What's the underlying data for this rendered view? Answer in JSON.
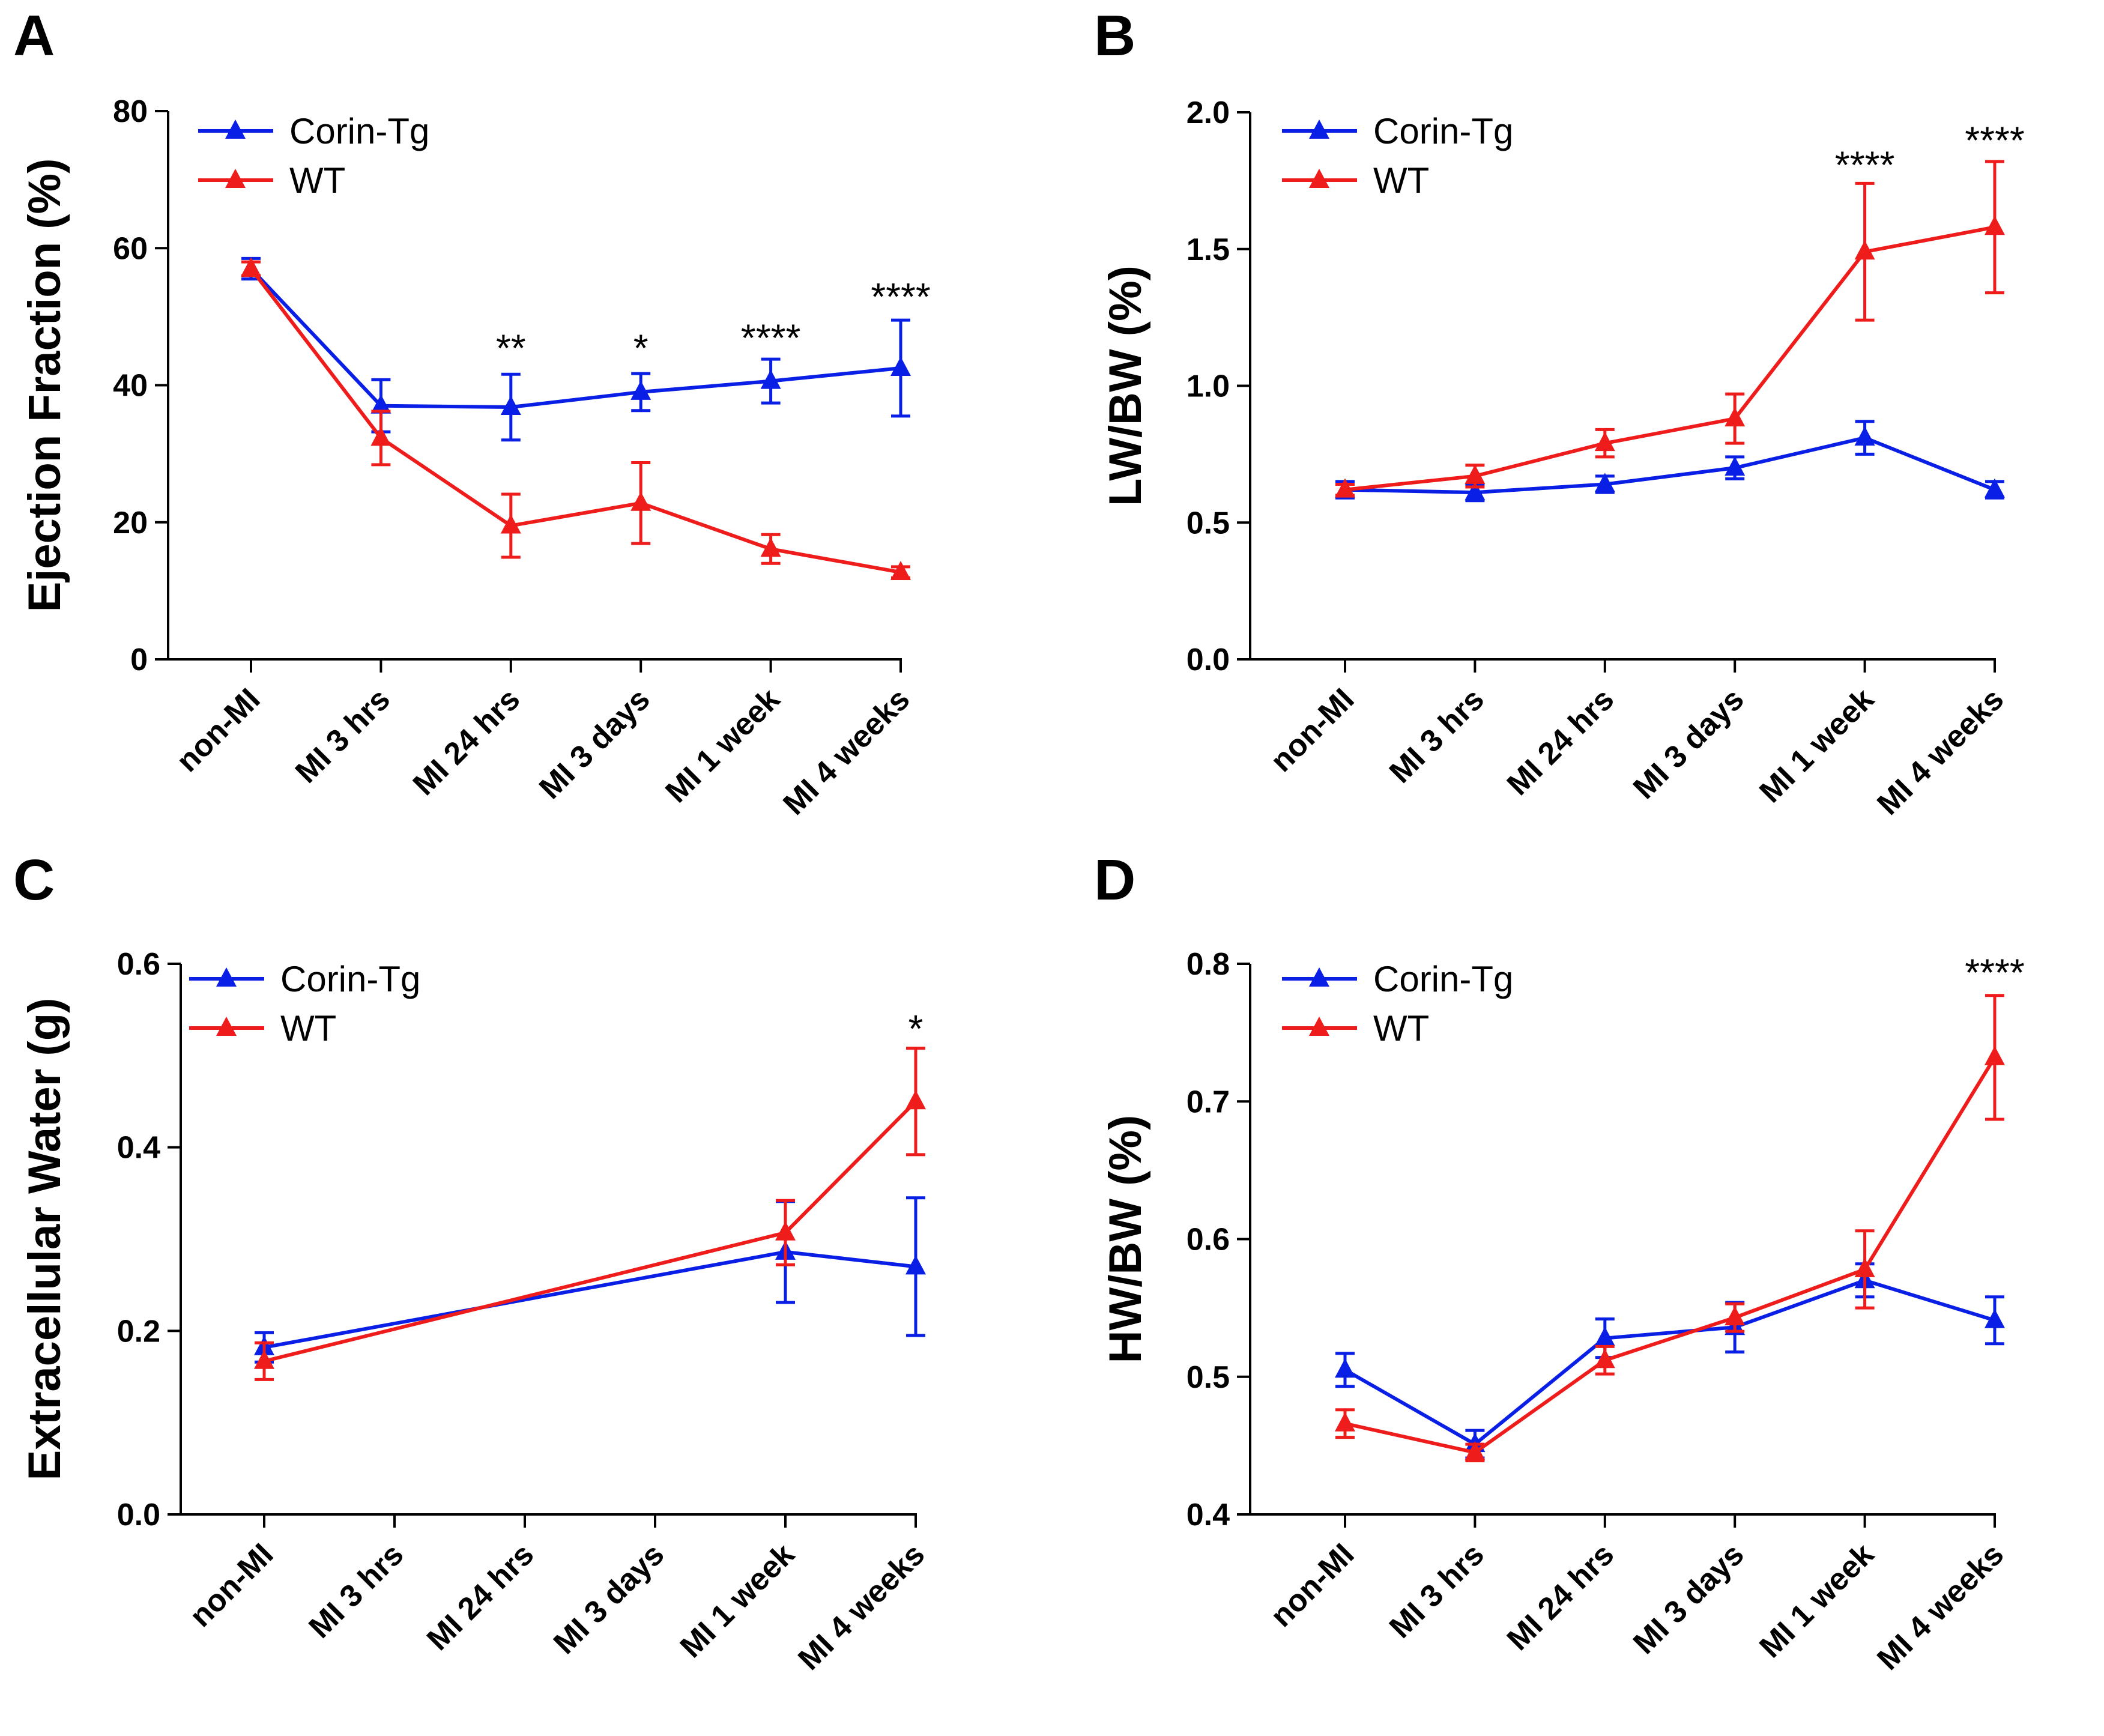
{
  "colors": {
    "corin_tg": "#0a1fe6",
    "wt": "#ef1c1c",
    "axis": "#000000"
  },
  "chart_data": [
    {
      "panel": "A",
      "type": "line",
      "ylabel": "Ejection Fraction (%)",
      "xlabel": "",
      "ylim": [
        0,
        80
      ],
      "yticks": [
        0,
        20,
        40,
        60,
        80
      ],
      "ytick_labels": [
        "0",
        "20",
        "40",
        "60",
        "80"
      ],
      "categories": [
        "non-MI",
        "MI 3 hrs",
        "MI 24 hrs",
        "MI 3 days",
        "MI 1 week",
        "MI 4 weeks"
      ],
      "legend": {
        "position": "top-left",
        "entries": [
          "Corin-Tg",
          "WT"
        ]
      },
      "series": [
        {
          "name": "Corin-Tg",
          "color": "#0a1fe6",
          "x": [
            0,
            1,
            2,
            3,
            4,
            5
          ],
          "values": [
            57,
            37,
            36.8,
            39,
            40.6,
            42.5
          ],
          "errors": [
            1.5,
            3.8,
            4.8,
            2.7,
            3.2,
            7
          ]
        },
        {
          "name": "WT",
          "color": "#ef1c1c",
          "x": [
            0,
            1,
            2,
            3,
            4,
            5
          ],
          "values": [
            57,
            32.3,
            19.5,
            22.8,
            16.1,
            12.7
          ],
          "errors": [
            1,
            3.9,
            4.6,
            5.9,
            2.1,
            0.8
          ]
        }
      ],
      "significance": [
        {
          "x": 2,
          "label": "**",
          "y": 43.5
        },
        {
          "x": 3,
          "label": "*",
          "y": 43.5
        },
        {
          "x": 4,
          "label": "****",
          "y": 45
        },
        {
          "x": 5,
          "label": "****",
          "y": 51
        }
      ]
    },
    {
      "panel": "B",
      "type": "line",
      "ylabel": "LW/BW (%)",
      "xlabel": "",
      "ylim": [
        0,
        2.0
      ],
      "yticks": [
        0,
        0.5,
        1.0,
        1.5,
        2.0
      ],
      "ytick_labels": [
        "0.0",
        "0.5",
        "1.0",
        "1.5",
        "2.0"
      ],
      "categories": [
        "non-MI",
        "MI 3 hrs",
        "MI 24 hrs",
        "MI 3 days",
        "MI 1 week",
        "MI 4 weeks"
      ],
      "legend": {
        "position": "top-left",
        "entries": [
          "Corin-Tg",
          "WT"
        ]
      },
      "series": [
        {
          "name": "Corin-Tg",
          "color": "#0a1fe6",
          "x": [
            0,
            1,
            2,
            3,
            4,
            5
          ],
          "values": [
            0.62,
            0.61,
            0.64,
            0.7,
            0.81,
            0.62
          ],
          "errors": [
            0.03,
            0.03,
            0.03,
            0.04,
            0.06,
            0.03
          ]
        },
        {
          "name": "WT",
          "color": "#ef1c1c",
          "x": [
            0,
            1,
            2,
            3,
            4,
            5
          ],
          "values": [
            0.62,
            0.67,
            0.79,
            0.88,
            1.49,
            1.58
          ],
          "errors": [
            0.02,
            0.04,
            0.05,
            0.09,
            0.25,
            0.24
          ]
        }
      ],
      "significance": [
        {
          "x": 4,
          "label": "****",
          "y": 1.76
        },
        {
          "x": 5,
          "label": "****",
          "y": 1.85
        }
      ]
    },
    {
      "panel": "C",
      "type": "line",
      "ylabel": "Extracellular Water (g)",
      "xlabel": "",
      "ylim": [
        0,
        0.6
      ],
      "yticks": [
        0,
        0.2,
        0.4,
        0.6
      ],
      "ytick_labels": [
        "0.0",
        "0.2",
        "0.4",
        "0.6"
      ],
      "categories": [
        "non-MI",
        "MI 3 hrs",
        "MI 24 hrs",
        "MI 3 days",
        "MI 1 week",
        "MI 4 weeks"
      ],
      "legend": {
        "position": "top-left",
        "entries": [
          "Corin-Tg",
          "WT"
        ]
      },
      "series": [
        {
          "name": "Corin-Tg",
          "color": "#0a1fe6",
          "x": [
            0,
            4,
            5
          ],
          "values": [
            0.182,
            0.286,
            0.27
          ],
          "errors": [
            0.016,
            0.055,
            0.075
          ]
        },
        {
          "name": "WT",
          "color": "#ef1c1c",
          "x": [
            0,
            4,
            5
          ],
          "values": [
            0.167,
            0.307,
            0.45
          ],
          "errors": [
            0.02,
            0.035,
            0.058
          ]
        }
      ],
      "significance": [
        {
          "x": 5,
          "label": "*",
          "y": 0.515
        }
      ]
    },
    {
      "panel": "D",
      "type": "line",
      "ylabel": "HW/BW (%)",
      "xlabel": "",
      "ylim": [
        0.4,
        0.8
      ],
      "yticks": [
        0.4,
        0.5,
        0.6,
        0.7,
        0.8
      ],
      "ytick_labels": [
        "0.4",
        "0.5",
        "0.6",
        "0.7",
        "0.8"
      ],
      "categories": [
        "non-MI",
        "MI 3 hrs",
        "MI 24 hrs",
        "MI 3 days",
        "MI 1 week",
        "MI 4 weeks"
      ],
      "legend": {
        "position": "top-left",
        "entries": [
          "Corin-Tg",
          "WT"
        ]
      },
      "series": [
        {
          "name": "Corin-Tg",
          "color": "#0a1fe6",
          "x": [
            0,
            1,
            2,
            3,
            4,
            5
          ],
          "values": [
            0.505,
            0.451,
            0.528,
            0.536,
            0.57,
            0.541
          ],
          "errors": [
            0.012,
            0.01,
            0.014,
            0.018,
            0.012,
            0.017
          ]
        },
        {
          "name": "WT",
          "color": "#ef1c1c",
          "x": [
            0,
            1,
            2,
            3,
            4,
            5
          ],
          "values": [
            0.466,
            0.445,
            0.512,
            0.543,
            0.578,
            0.732
          ],
          "errors": [
            0.01,
            0.006,
            0.01,
            0.01,
            0.028,
            0.045
          ]
        }
      ],
      "significance": [
        {
          "x": 5,
          "label": "****",
          "y": 0.784
        }
      ]
    }
  ]
}
